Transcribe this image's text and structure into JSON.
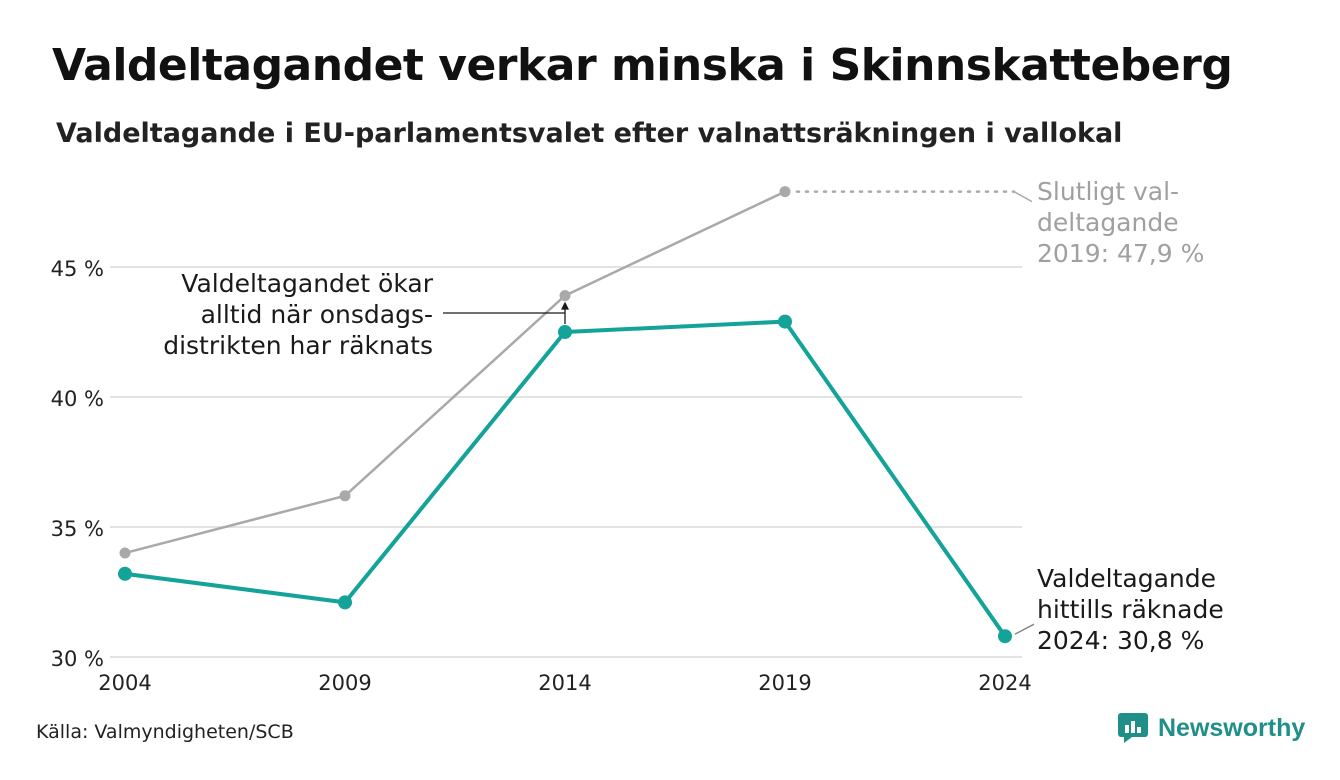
{
  "title": "Valdeltagandet verkar minska i Skinnskatteberg",
  "subtitle": "Valdeltagande i EU-parlamentsvalet efter valnattsräkningen i vallokal",
  "source": "Källa: Valmyndigheten/SCB",
  "brand": "Newsworthy",
  "colors": {
    "primary": "#14a399",
    "secondary": "#a9a9a9",
    "grid": "#e3e3e3",
    "brand": "#1f8f87"
  },
  "chart_data": {
    "type": "line",
    "x": [
      2004,
      2009,
      2014,
      2019,
      2024
    ],
    "ylim": [
      30,
      48
    ],
    "yticks": [
      30,
      35,
      40,
      45
    ],
    "ytick_labels": [
      "30 %",
      "35 %",
      "40 %",
      "45 %"
    ],
    "xtick_labels": [
      "2004",
      "2009",
      "2014",
      "2019",
      "2024"
    ],
    "grid": true,
    "series": [
      {
        "name": "Slutligt valdeltagande",
        "values": [
          34.0,
          36.2,
          43.9,
          47.9,
          null
        ],
        "color": "#a9a9a9"
      },
      {
        "name": "Valdeltagande hittills räknade",
        "values": [
          33.2,
          32.1,
          42.5,
          42.9,
          30.8
        ],
        "color": "#14a399"
      }
    ],
    "annotations": {
      "final_2019": [
        "Slutligt val-",
        "deltagande",
        "2019: 47,9 %"
      ],
      "counted_2024": [
        "Valdeltagande",
        "hittills räknade",
        "2024: 30,8 %"
      ],
      "wednesday": [
        "Valdeltagandet ökar",
        "alltid när onsdags-",
        "distrikten har räknats"
      ]
    }
  }
}
